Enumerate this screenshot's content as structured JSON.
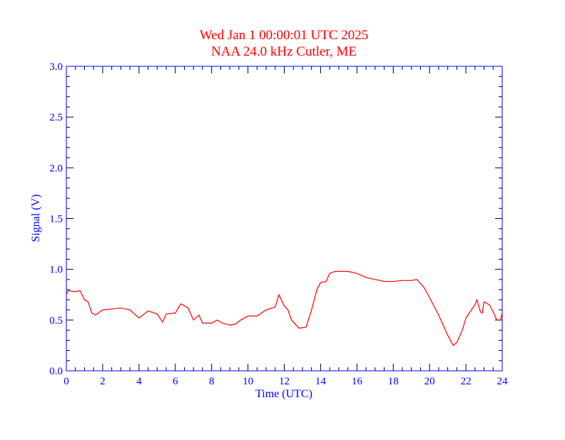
{
  "chart_data": {
    "type": "line",
    "title": "Wed Jan 1 00:00:01 UTC 2025",
    "subtitle": "NAA 24.0 kHz Cutler, ME",
    "xlabel": "Time (UTC)",
    "ylabel": "Signal (V)",
    "xlim": [
      0,
      24
    ],
    "ylim": [
      0,
      3.0
    ],
    "xticks": [
      "0",
      "2",
      "4",
      "6",
      "8",
      "10",
      "12",
      "14",
      "16",
      "18",
      "20",
      "22",
      "24"
    ],
    "yticks": [
      "0.0",
      "0.5",
      "1.0",
      "1.5",
      "2.0",
      "2.5",
      "3.0"
    ],
    "grid": false,
    "colors": {
      "axis": "#0000ff",
      "title": "#ff0000",
      "series": "#ff0000",
      "ticks": "#000000"
    },
    "series": [
      {
        "name": "Signal",
        "x": [
          0,
          0.1,
          0.5,
          0.75,
          1,
          1.2,
          1.4,
          1.6,
          2,
          2.5,
          3,
          3.5,
          4,
          4.5,
          5,
          5.3,
          5.5,
          6,
          6.3,
          6.7,
          7,
          7.3,
          7.5,
          8,
          8.3,
          8.6,
          9,
          9.3,
          9.6,
          10,
          10.5,
          11,
          11.5,
          11.7,
          12,
          12.2,
          12.4,
          12.8,
          13.2,
          13.5,
          13.8,
          14,
          14.3,
          14.5,
          14.8,
          15,
          15.5,
          16,
          16.5,
          17,
          17.5,
          18,
          18.5,
          19,
          19.3,
          19.7,
          20,
          20.5,
          20.8,
          21,
          21.3,
          21.5,
          21.8,
          22,
          22.3,
          22.5,
          22.6,
          22.8,
          22.9,
          23,
          23.3,
          23.5,
          23.7,
          23.9,
          24
        ],
        "y": [
          0.75,
          0.79,
          0.78,
          0.79,
          0.7,
          0.68,
          0.57,
          0.55,
          0.6,
          0.61,
          0.62,
          0.6,
          0.52,
          0.59,
          0.56,
          0.48,
          0.56,
          0.57,
          0.66,
          0.62,
          0.5,
          0.55,
          0.47,
          0.47,
          0.5,
          0.47,
          0.45,
          0.46,
          0.5,
          0.54,
          0.54,
          0.6,
          0.63,
          0.75,
          0.64,
          0.6,
          0.5,
          0.42,
          0.43,
          0.6,
          0.8,
          0.87,
          0.88,
          0.96,
          0.98,
          0.98,
          0.98,
          0.96,
          0.92,
          0.9,
          0.88,
          0.88,
          0.89,
          0.89,
          0.9,
          0.82,
          0.72,
          0.55,
          0.43,
          0.35,
          0.25,
          0.28,
          0.4,
          0.52,
          0.6,
          0.65,
          0.7,
          0.58,
          0.57,
          0.68,
          0.65,
          0.58,
          0.5,
          0.5,
          0.57
        ]
      }
    ]
  }
}
